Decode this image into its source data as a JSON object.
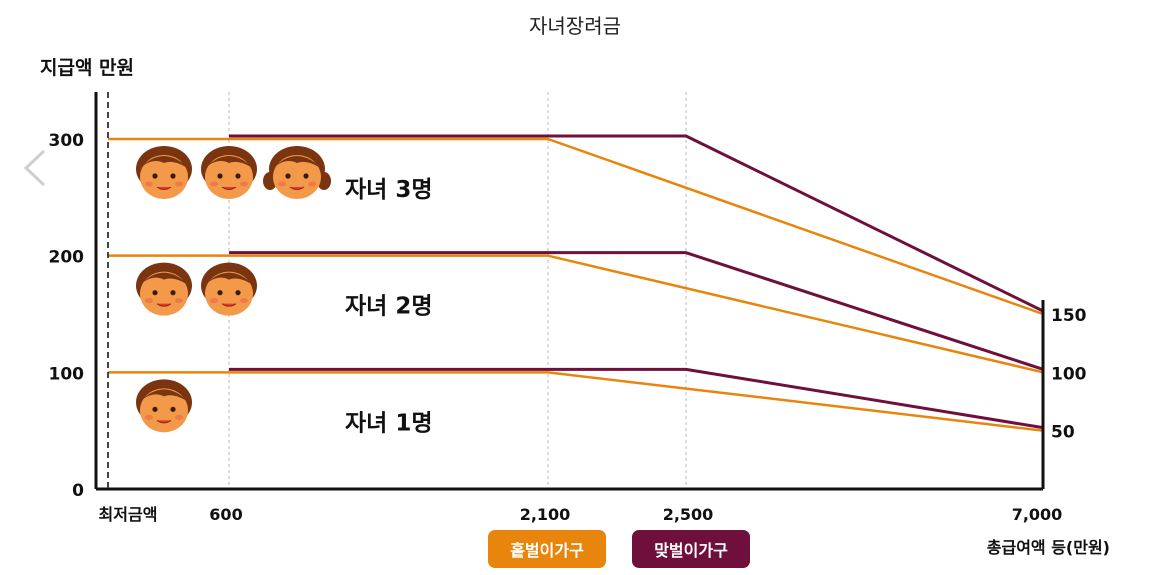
{
  "page_title": "자녀장려금",
  "chart_data": {
    "type": "line",
    "title": "자녀장려금",
    "ylabel": "지급액 만원",
    "xlabel": "총급여액 등(만원)",
    "y_ticks": [
      "0",
      "100",
      "200",
      "300"
    ],
    "x_ticks": [
      {
        "value": "min",
        "label": "최저금액"
      },
      {
        "value": 600,
        "label": "600"
      },
      {
        "value": 2100,
        "label": "2,100"
      },
      {
        "value": 2500,
        "label": "2,500"
      },
      {
        "value": 7000,
        "label": "7,000"
      }
    ],
    "right_ticks": [
      {
        "value": 150,
        "label": "150"
      },
      {
        "value": 100,
        "label": "100"
      },
      {
        "value": 50,
        "label": "50"
      }
    ],
    "ylim": [
      0,
      330
    ],
    "series": [
      {
        "name": "홑벌이가구",
        "children": 3,
        "points": [
          [
            "min",
            300
          ],
          [
            2100,
            300
          ],
          [
            7000,
            150
          ]
        ]
      },
      {
        "name": "맞벌이가구",
        "children": 3,
        "points": [
          [
            600,
            300
          ],
          [
            2500,
            300
          ],
          [
            7000,
            150
          ]
        ]
      },
      {
        "name": "홑벌이가구",
        "children": 2,
        "points": [
          [
            "min",
            200
          ],
          [
            2100,
            200
          ],
          [
            7000,
            100
          ]
        ]
      },
      {
        "name": "맞벌이가구",
        "children": 2,
        "points": [
          [
            600,
            200
          ],
          [
            2500,
            200
          ],
          [
            7000,
            100
          ]
        ]
      },
      {
        "name": "홑벌이가구",
        "children": 1,
        "points": [
          [
            "min",
            100
          ],
          [
            2100,
            100
          ],
          [
            7000,
            50
          ]
        ]
      },
      {
        "name": "맞벌이가구",
        "children": 1,
        "points": [
          [
            600,
            100
          ],
          [
            2500,
            100
          ],
          [
            7000,
            50
          ]
        ]
      }
    ],
    "annotations": [
      {
        "label": "자녀 3명",
        "children": 3
      },
      {
        "label": "자녀 2명",
        "children": 2
      },
      {
        "label": "자녀 1명",
        "children": 1
      }
    ],
    "legend": [
      {
        "label": "홑벌이가구",
        "color": "#e8850c"
      },
      {
        "label": "맞벌이가구",
        "color": "#6e0f3c"
      }
    ],
    "legend_position": "bottom-center",
    "grid": "vertical dotted at x ticks"
  },
  "colors": {
    "single": "#e8850c",
    "dual": "#6e0f3c",
    "face": "#f29a4a",
    "hair": "#7a3510"
  },
  "nav": {
    "prev_icon": "chevron-left-icon"
  }
}
